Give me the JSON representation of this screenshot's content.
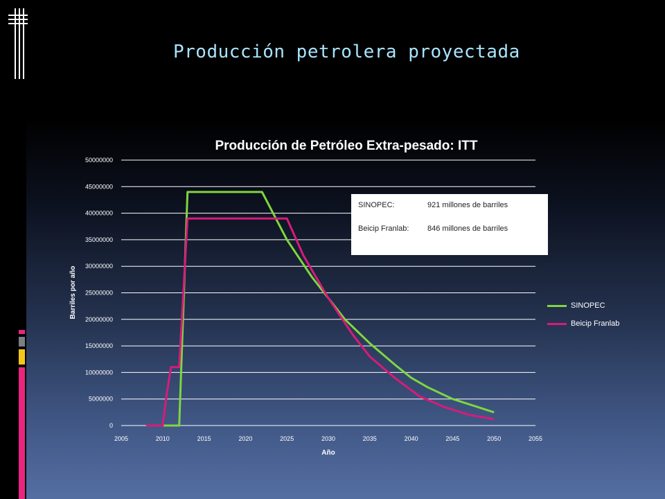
{
  "slide": {
    "title": "Producción petrolera proyectada"
  },
  "colors": {
    "sinopec": "#7fd63f",
    "beicip": "#d81b7a",
    "accent_pink": "#e8257f",
    "accent_gray": "#7b7f86",
    "accent_yellow": "#f5c518"
  },
  "annotation": {
    "row1_label": "SINOPEC:",
    "row1_value": "921 millones de barriles",
    "row2_label": "Beicip Franlab:",
    "row2_value": "846 millones de barriles"
  },
  "chart_data": {
    "type": "line",
    "title": "Producción  de Petróleo Extra-pesado: ITT",
    "xlabel": "Año",
    "ylabel": "Barriles por año",
    "xlim": [
      2005,
      2055
    ],
    "ylim": [
      0,
      50000000
    ],
    "x_ticks": [
      "2005",
      "2010",
      "2015",
      "2020",
      "2025",
      "2030",
      "2035",
      "2040",
      "2045",
      "2050",
      "2055"
    ],
    "y_ticks": [
      "0",
      "5000000",
      "10000000",
      "15000000",
      "20000000",
      "25000000",
      "30000000",
      "35000000",
      "40000000",
      "45000000",
      "50000000"
    ],
    "grid": true,
    "legend_position": "right",
    "series": [
      {
        "name": "SINOPEC",
        "x": [
          2010,
          2012,
          2013,
          2022,
          2025,
          2028,
          2030,
          2032,
          2035,
          2038,
          2040,
          2042,
          2045,
          2048,
          2050
        ],
        "values": [
          0,
          0,
          44000000,
          44000000,
          35000000,
          28000000,
          24000000,
          20000000,
          15500000,
          11500000,
          9000000,
          7200000,
          5000000,
          3500000,
          2500000
        ]
      },
      {
        "name": "Beicip Franlab",
        "x": [
          2008,
          2010,
          2010.5,
          2011,
          2011.5,
          2012,
          2013,
          2025,
          2027,
          2030,
          2033,
          2035,
          2038,
          2041,
          2044,
          2047,
          2050
        ],
        "values": [
          0,
          0,
          6000000,
          11000000,
          11000000,
          11000000,
          39000000,
          39000000,
          32000000,
          24000000,
          17000000,
          13000000,
          9000000,
          5500000,
          3500000,
          2000000,
          1200000
        ]
      }
    ]
  }
}
